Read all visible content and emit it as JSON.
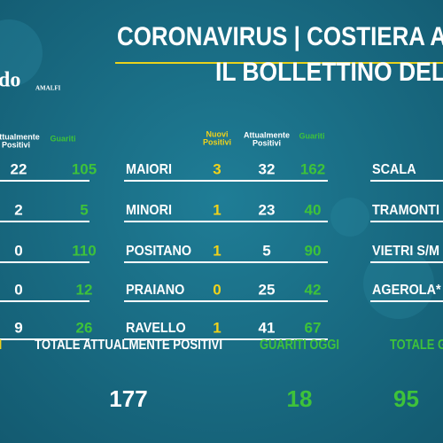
{
  "header": {
    "title_line1": "CORONAVIRUS | COSTIERA A",
    "title_line2": "IL BOLLETTINO DEL"
  },
  "logo": {
    "text": "do",
    "subtext": "AMALFI"
  },
  "left_table": {
    "headers": {
      "active": [
        "ttualmente",
        "Positivi"
      ],
      "recovered": "Guariti"
    },
    "rows": [
      [
        22,
        105
      ],
      [
        2,
        5
      ],
      [
        0,
        110
      ],
      [
        0,
        12
      ],
      [
        9,
        26
      ]
    ]
  },
  "middle_table": {
    "headers": {
      "new": [
        "Nuovi",
        "Positivi"
      ],
      "active": [
        "Attualmente",
        "Positivi"
      ],
      "recovered": "Guariti"
    },
    "rows": [
      {
        "name": "MAIORI",
        "new": 3,
        "active": 32,
        "recovered": 162
      },
      {
        "name": "MINORI",
        "new": 1,
        "active": 23,
        "recovered": 40
      },
      {
        "name": "POSITANO",
        "new": 1,
        "active": 5,
        "recovered": 90
      },
      {
        "name": "PRAIANO",
        "new": 0,
        "active": 25,
        "recovered": 42
      },
      {
        "name": "RAVELLO",
        "new": 1,
        "active": 41,
        "recovered": 67
      }
    ]
  },
  "right_table": {
    "rows": [
      "SCALA",
      "TRAMONTI",
      "VIETRI S/M",
      "AGEROLA*"
    ]
  },
  "summary": {
    "partial_left": "I",
    "total_active": {
      "label": "TOTALE ATTUALMENTE POSITIVI",
      "value": 177
    },
    "recovered_today": {
      "label": "GUARITI OGGI",
      "value": 18
    },
    "total_recovered": {
      "label": "TOTALE G",
      "value": 95
    }
  }
}
